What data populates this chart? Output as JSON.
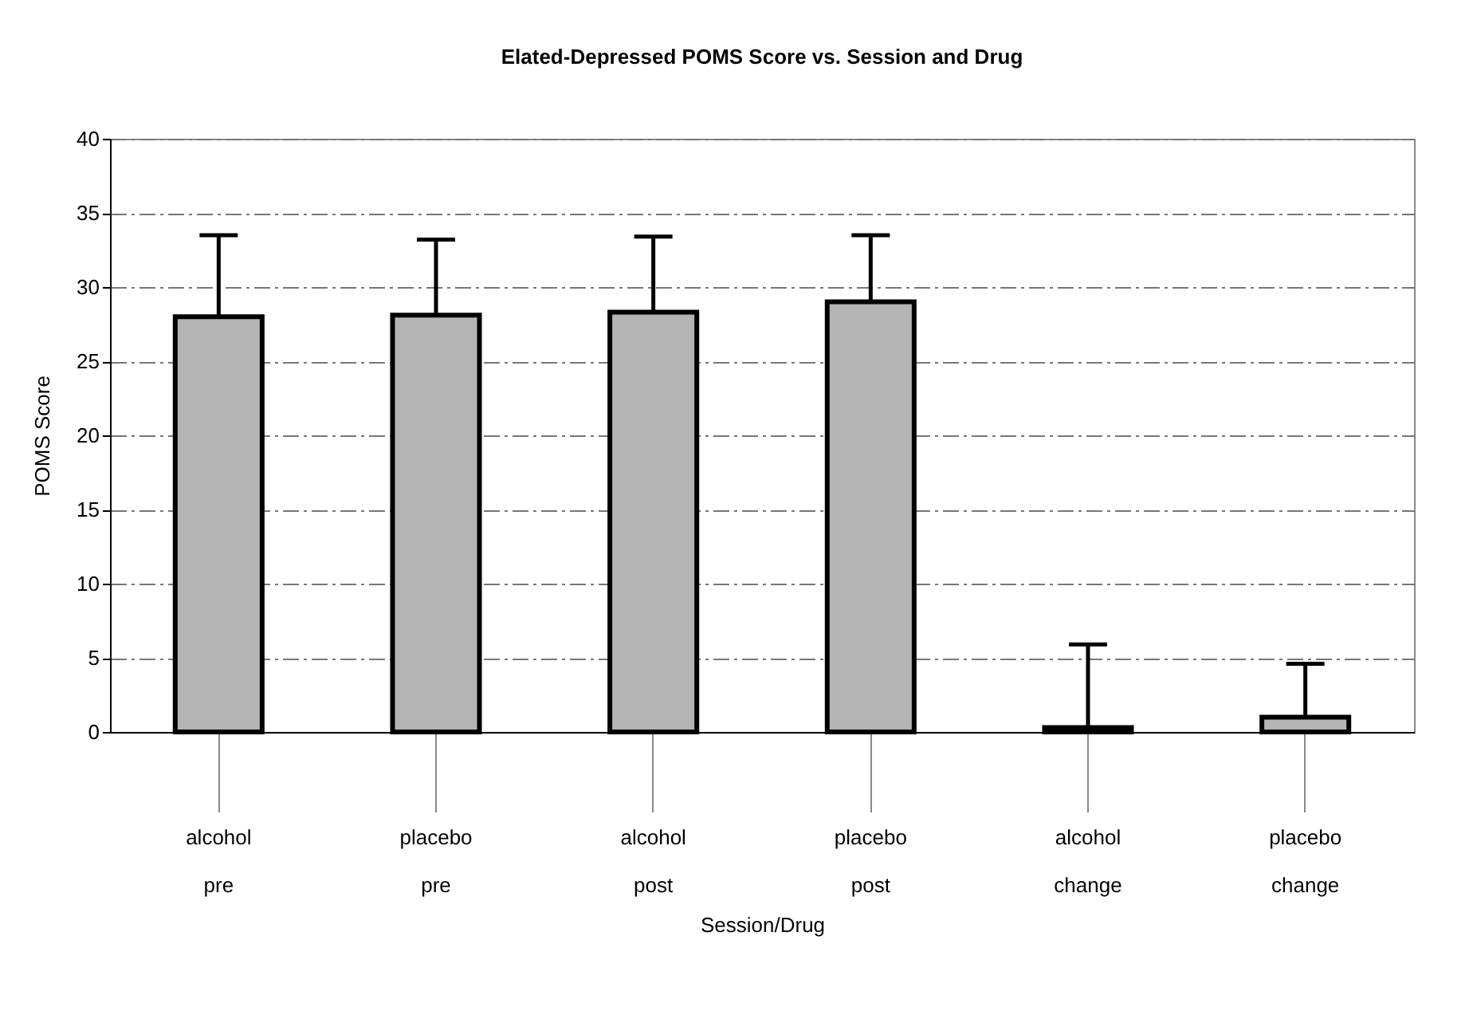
{
  "chart_data": {
    "type": "bar",
    "title": "Elated-Depressed POMS Score vs. Session and Drug",
    "xlabel": "Session/Drug",
    "ylabel": "POMS Score",
    "categories": [
      "alcohol\npre",
      "placebo\npre",
      "alcohol\npost",
      "placebo\npost",
      "alcohol\nchange",
      "placebo\nchange"
    ],
    "values": [
      28.0,
      28.1,
      28.3,
      29.0,
      0.3,
      1.0
    ],
    "errors": [
      [
        28.0,
        33.5
      ],
      [
        28.1,
        33.2
      ],
      [
        28.3,
        33.4
      ],
      [
        29.0,
        33.5
      ],
      [
        0.3,
        5.9
      ],
      [
        1.0,
        4.6
      ]
    ],
    "color": "#b4b4b4",
    "ylim": [
      0,
      40
    ],
    "yticks": [
      0,
      5,
      10,
      15,
      20,
      25,
      30,
      35,
      40
    ],
    "grid": "y"
  }
}
